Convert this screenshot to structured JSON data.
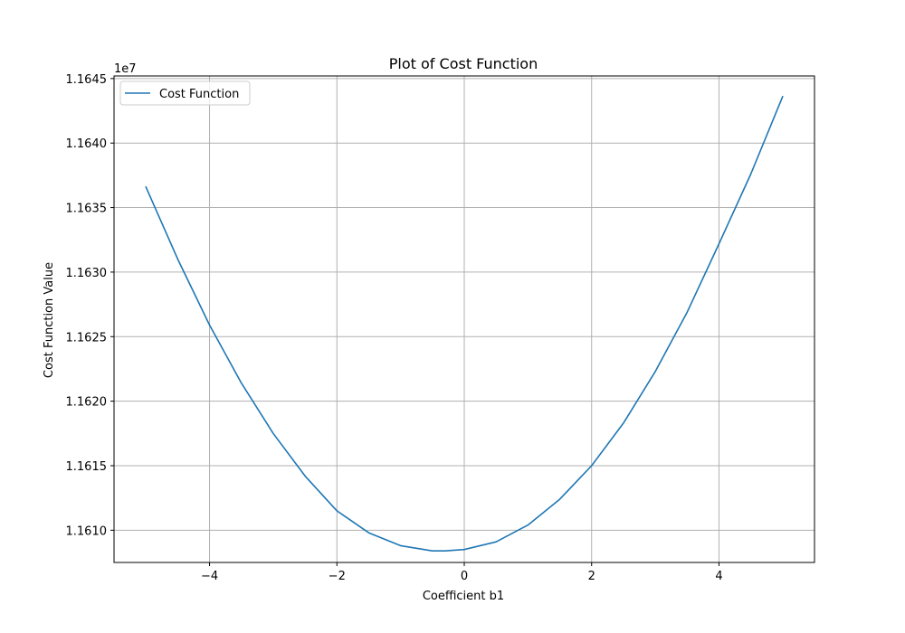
{
  "chart_data": {
    "type": "line",
    "title": "Plot of Cost Function",
    "xlabel": "Coefficient b1",
    "ylabel": "Cost Function Value",
    "y_offset_text": "1e7",
    "xlim": [
      -5.5,
      5.5
    ],
    "ylim": [
      11607500,
      11645200
    ],
    "xticks": [
      -4,
      -2,
      0,
      2,
      4
    ],
    "xtick_labels": [
      "−4",
      "−2",
      "0",
      "2",
      "4"
    ],
    "yticks": [
      11610000,
      11615000,
      11620000,
      11625000,
      11630000,
      11635000,
      11640000,
      11645000
    ],
    "ytick_labels": [
      "1.1610",
      "1.1615",
      "1.1620",
      "1.1625",
      "1.1630",
      "1.1635",
      "1.1640",
      "1.1645"
    ],
    "grid": true,
    "legend": {
      "position": "top-left"
    },
    "colors": {
      "series": "#1f77b4",
      "grid": "#b0b0b0",
      "axes": "#000000"
    },
    "series": [
      {
        "name": "Cost Function",
        "x": [
          -5.0,
          -4.5,
          -4.0,
          -3.5,
          -3.0,
          -2.5,
          -2.0,
          -1.5,
          -1.0,
          -0.5,
          -0.3,
          0.0,
          0.5,
          1.0,
          1.5,
          2.0,
          2.5,
          3.0,
          3.5,
          4.0,
          4.5,
          5.0
        ],
        "y": [
          11636600,
          11631000,
          11625900,
          11621400,
          11617500,
          11614200,
          11611500,
          11609800,
          11608800,
          11608400,
          11608400,
          11608500,
          11609100,
          11610400,
          11612400,
          11615000,
          11618300,
          11622300,
          11626900,
          11632200,
          11637600,
          11643600
        ]
      }
    ]
  }
}
